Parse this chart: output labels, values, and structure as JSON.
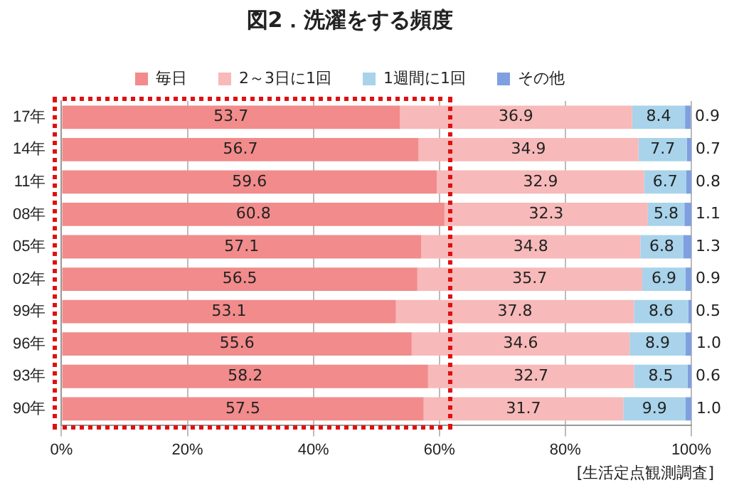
{
  "chart_data": {
    "type": "bar",
    "orientation": "horizontal",
    "stacked": true,
    "title": "図2．洗濯をする頻度",
    "categories": [
      "17年",
      "14年",
      "11年",
      "08年",
      "05年",
      "02年",
      "99年",
      "96年",
      "93年",
      "90年"
    ],
    "series": [
      {
        "name": "毎日",
        "color": "#f28b8b",
        "values": [
          53.7,
          56.7,
          59.6,
          60.8,
          57.1,
          56.5,
          53.1,
          55.6,
          58.2,
          57.5
        ]
      },
      {
        "name": "2～3日に1回",
        "color": "#f7b9b9",
        "values": [
          36.9,
          34.9,
          32.9,
          32.3,
          34.8,
          35.7,
          37.8,
          34.6,
          32.7,
          31.7
        ]
      },
      {
        "name": "1週間に1回",
        "color": "#a8d3ea",
        "values": [
          8.4,
          7.7,
          6.7,
          5.8,
          6.8,
          6.9,
          8.6,
          8.9,
          8.5,
          9.9
        ]
      },
      {
        "name": "その他",
        "color": "#7f9fe0",
        "values": [
          0.9,
          0.7,
          0.8,
          1.1,
          1.3,
          0.9,
          0.5,
          1.0,
          0.6,
          1.0
        ],
        "value_labels": [
          "0.9",
          "0.7",
          "0.8",
          "1.1",
          "1.3",
          "0.9",
          "0.5",
          "1.0",
          "0.6",
          "1.0"
        ]
      }
    ],
    "xlim": [
      0,
      100
    ],
    "xticks": [
      {
        "value": 0,
        "label": "0%"
      },
      {
        "value": 20,
        "label": "20%"
      },
      {
        "value": 40,
        "label": "40%"
      },
      {
        "value": 60,
        "label": "60%"
      },
      {
        "value": 80,
        "label": "80%"
      },
      {
        "value": 100,
        "label": "100%"
      }
    ],
    "grid": "x",
    "legend": "top",
    "data_labels": true,
    "annotations": [
      "[生活定点観測調査]"
    ]
  }
}
